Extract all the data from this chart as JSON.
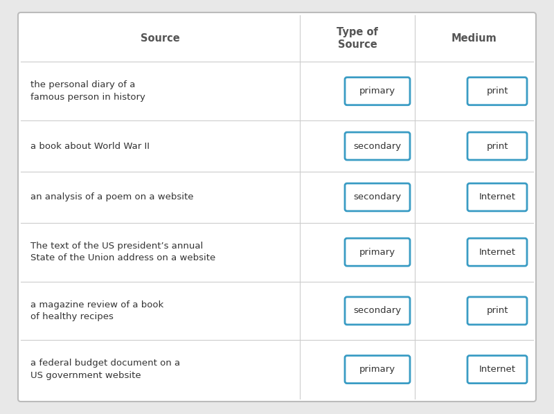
{
  "background_color": "#e8e8e8",
  "table_bg": "#ffffff",
  "border_color": "#cccccc",
  "outer_border_color": "#bbbbbb",
  "box_border_color": "#3a9cc4",
  "text_color": "#333333",
  "header_text_color": "#555555",
  "col_headers": [
    "Source",
    "Type of\nSource",
    "Medium"
  ],
  "rows": [
    {
      "source": "the personal diary of a\nfamous person in history",
      "type": "primary",
      "medium": "print"
    },
    {
      "source": "a book about World War II",
      "type": "secondary",
      "medium": "print"
    },
    {
      "source": "an analysis of a poem on a website",
      "type": "secondary",
      "medium": "Internet"
    },
    {
      "source": "The text of the US president’s annual\nState of the Union address on a website",
      "type": "primary",
      "medium": "Internet"
    },
    {
      "source": "a magazine review of a book\nof healthy recipes",
      "type": "secondary",
      "medium": "print"
    },
    {
      "source": "a federal budget document on a\nUS government website",
      "type": "primary",
      "medium": "Internet"
    }
  ],
  "figsize": [
    8.0,
    5.98
  ],
  "dpi": 100
}
